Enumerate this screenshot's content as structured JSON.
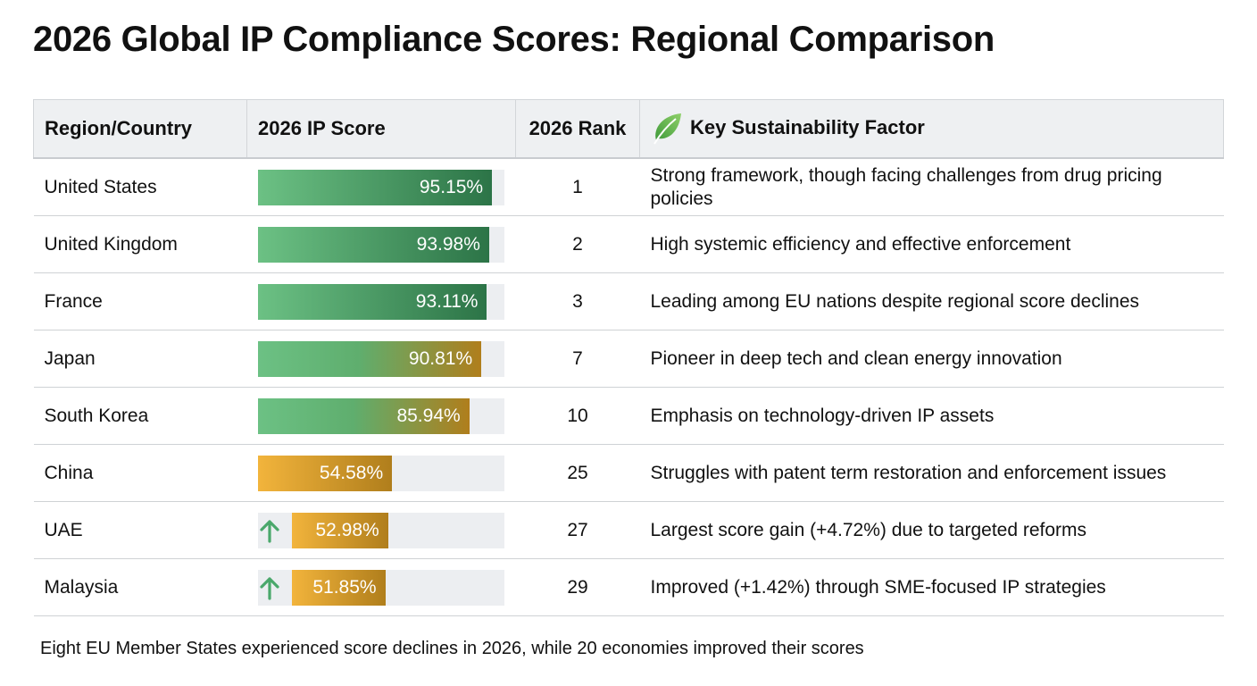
{
  "title": "2026 Global IP Compliance Scores: Regional Comparison",
  "headers": [
    "Region/Country",
    "2026 IP Score",
    "2026 Rank",
    "Key Sustainability Factor"
  ],
  "header_icon": "leaf-icon",
  "colors": {
    "green_start": "#6cc184",
    "green_end": "#2c7447",
    "gold_start": "#f2b43c",
    "gold_end": "#b07e1c",
    "track": "#eceef1",
    "arrow": "#4aa86b"
  },
  "chart_data": {
    "type": "table",
    "title": "2026 Global IP Compliance Scores: Regional Comparison",
    "xlim": [
      0,
      100
    ],
    "rows": [
      {
        "region": "United States",
        "score": 95.15,
        "score_label": "95.15%",
        "rank": "1",
        "factor": "Strong framework, though facing challenges from drug pricing policies",
        "improved": false,
        "tone": "green"
      },
      {
        "region": "United Kingdom",
        "score": 93.98,
        "score_label": "93.98%",
        "rank": "2",
        "factor": "High systemic efficiency and effective enforcement",
        "improved": false,
        "tone": "green"
      },
      {
        "region": "France",
        "score": 93.11,
        "score_label": "93.11%",
        "rank": "3",
        "factor": "Leading among EU nations despite regional score declines",
        "improved": false,
        "tone": "green"
      },
      {
        "region": "Japan",
        "score": 90.81,
        "score_label": "90.81%",
        "rank": "7",
        "factor": "Pioneer in deep tech and clean energy innovation",
        "improved": false,
        "tone": "mixed"
      },
      {
        "region": "South Korea",
        "score": 85.94,
        "score_label": "85.94%",
        "rank": "10",
        "factor": "Emphasis on technology-driven IP assets",
        "improved": false,
        "tone": "mixed"
      },
      {
        "region": "China",
        "score": 54.58,
        "score_label": "54.58%",
        "rank": "25",
        "factor": "Struggles with patent term restoration and enforcement issues",
        "improved": false,
        "tone": "gold"
      },
      {
        "region": "UAE",
        "score": 52.98,
        "score_label": "52.98%",
        "rank": "27",
        "factor": "Largest score gain (+4.72%) due to targeted reforms",
        "improved": true,
        "tone": "gold"
      },
      {
        "region": "Malaysia",
        "score": 51.85,
        "score_label": "51.85%",
        "rank": "29",
        "factor": "Improved (+1.42%) through SME-focused IP strategies",
        "improved": true,
        "tone": "gold"
      }
    ]
  },
  "footnote": "Eight EU Member States experienced score declines in 2026, while 20 economies improved their scores"
}
